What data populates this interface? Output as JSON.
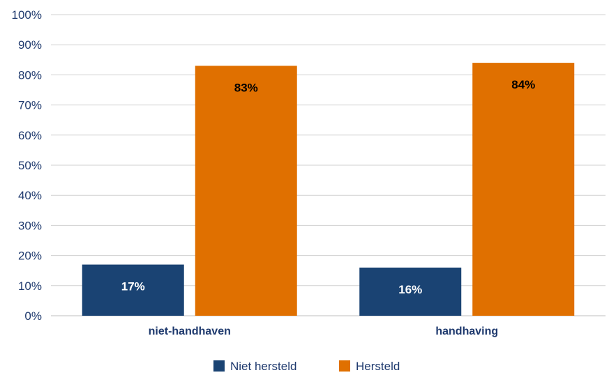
{
  "chart_data": {
    "type": "bar",
    "title": "",
    "xlabel": "",
    "ylabel": "",
    "categories": [
      "niet-handhaven",
      "handhaving"
    ],
    "series": [
      {
        "name": "Niet hersteld",
        "values": [
          17,
          16
        ],
        "labels": [
          "17%",
          "16%"
        ],
        "color": "#1a4373",
        "label_color": "#ffffff"
      },
      {
        "name": "Hersteld",
        "values": [
          83,
          84
        ],
        "labels": [
          "83%",
          "84%"
        ],
        "color": "#e07000",
        "label_color": "#000000"
      }
    ],
    "ylim": [
      0,
      100
    ],
    "yticks": [
      0,
      10,
      20,
      30,
      40,
      50,
      60,
      70,
      80,
      90,
      100
    ],
    "ytick_labels": [
      "0%",
      "10%",
      "20%",
      "30%",
      "40%",
      "50%",
      "60%",
      "70%",
      "80%",
      "90%",
      "100%"
    ],
    "grid": true,
    "legend_position": "bottom-center"
  }
}
